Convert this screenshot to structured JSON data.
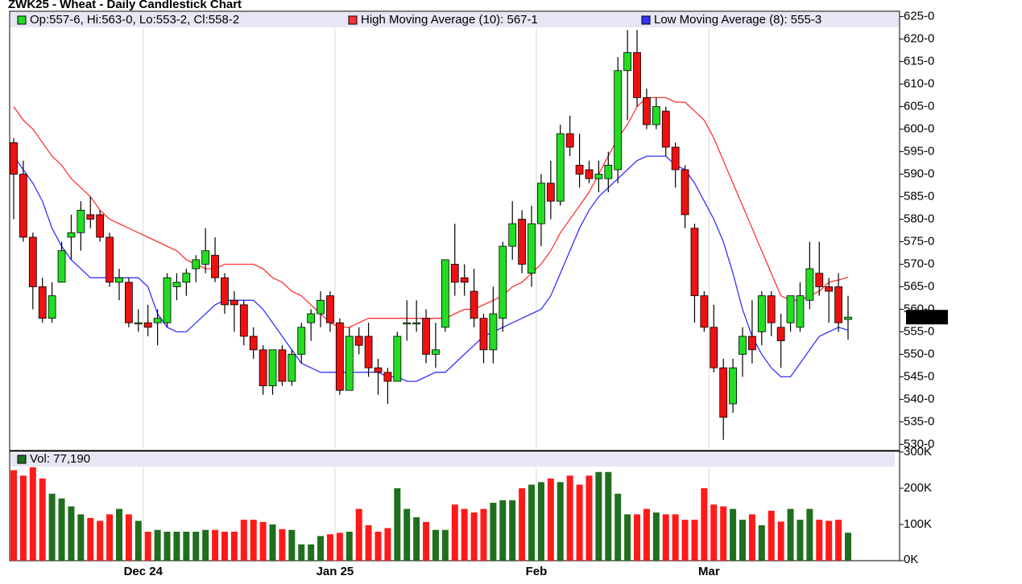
{
  "chart_data": {
    "type": "candlestick",
    "title": "ZWK25 - Wheat - Daily Candlestick Chart",
    "candle_legend": "Op:557-6, Hi:563-0, Lo:553-2, Cl:558-2",
    "volume_label": "Vol: 77,190",
    "last_price_label": "558-2",
    "up_color": "#22dd22",
    "down_color": "#ee1111",
    "volume_up_color": "#1f6f1f",
    "volume_down_color": "#ff1a1a",
    "grid": true,
    "categories": [
      null,
      null,
      null,
      null,
      null,
      null,
      null,
      null,
      null,
      null,
      null,
      null,
      null,
      null,
      "Dec 24",
      null,
      null,
      null,
      null,
      null,
      null,
      null,
      null,
      null,
      null,
      null,
      null,
      null,
      null,
      null,
      null,
      null,
      null,
      null,
      "Jan 25",
      null,
      null,
      null,
      null,
      null,
      null,
      null,
      null,
      null,
      null,
      null,
      null,
      null,
      null,
      null,
      null,
      null,
      null,
      null,
      null,
      "Feb",
      null,
      null,
      null,
      null,
      null,
      null,
      null,
      null,
      null,
      null,
      null,
      null,
      null,
      null,
      null,
      null,
      null,
      "Mar",
      null,
      null,
      null,
      null,
      null,
      null,
      null,
      null,
      null,
      null,
      null,
      null,
      null,
      null
    ],
    "open": [
      597,
      590,
      576,
      565,
      558,
      566,
      576,
      577,
      581,
      581,
      576,
      566,
      566,
      557,
      557,
      557,
      557,
      565,
      566,
      569,
      570,
      572,
      567,
      562,
      561,
      554,
      551,
      543,
      551,
      544,
      550,
      557,
      559,
      563,
      557,
      542,
      554,
      554,
      547,
      546,
      544,
      557,
      557,
      558,
      550,
      556,
      570,
      567,
      564,
      558,
      551,
      558,
      574,
      580,
      568,
      579,
      588,
      584,
      599,
      592,
      591,
      589,
      589,
      591,
      613,
      617,
      607,
      601,
      604,
      596,
      591,
      578,
      563,
      556,
      547,
      539,
      550,
      554,
      555,
      563,
      556,
      557,
      556,
      562,
      568,
      565,
      565,
      557.75
    ],
    "high": [
      598,
      593,
      577,
      567,
      566,
      575,
      581,
      584,
      585,
      582,
      577,
      569,
      567,
      560,
      561,
      560,
      568,
      568,
      569,
      572,
      578,
      576,
      568,
      564,
      562,
      556,
      552,
      551,
      552,
      551,
      557,
      560,
      564,
      564,
      558,
      556,
      556,
      557,
      549,
      547,
      555,
      562,
      562,
      560,
      557,
      571,
      579,
      570,
      569,
      559,
      565,
      575,
      584,
      582,
      583,
      590,
      593,
      601,
      603,
      599,
      593,
      593,
      595,
      616,
      622,
      622,
      609,
      607,
      605,
      597,
      592,
      579,
      564,
      561,
      549,
      549,
      556,
      562,
      564,
      564,
      559,
      563,
      566,
      575,
      575,
      567,
      568,
      563
    ],
    "low": [
      580,
      575,
      560,
      557,
      557,
      566,
      571,
      573,
      578,
      575,
      565,
      562,
      556,
      555,
      554,
      552,
      556,
      562,
      563,
      566,
      568,
      566,
      559,
      555,
      552,
      549,
      541,
      541,
      543,
      543,
      548,
      553,
      556,
      555,
      541,
      542,
      550,
      545,
      541,
      539,
      544,
      553,
      555,
      548,
      547,
      555,
      563,
      563,
      556,
      548,
      548,
      555,
      571,
      568,
      565,
      574,
      580,
      583,
      594,
      587,
      588,
      586,
      586,
      588,
      602,
      605,
      600,
      600,
      594,
      587,
      578,
      557,
      555,
      546,
      531,
      537,
      545,
      548,
      552,
      554,
      547,
      555,
      555,
      560,
      563,
      557,
      555,
      553.25
    ],
    "close": [
      590,
      576,
      565,
      558,
      563,
      573,
      577,
      582,
      580,
      576,
      566,
      567,
      557,
      557,
      556,
      558,
      567,
      566,
      568,
      571,
      573,
      567,
      561,
      561,
      554,
      551,
      543,
      551,
      544,
      550,
      556,
      559,
      562,
      557,
      542,
      554,
      552,
      547,
      546,
      544,
      554,
      557,
      557,
      550,
      551,
      571,
      566,
      566,
      558,
      551,
      559,
      574,
      579,
      570,
      579,
      588,
      584,
      599,
      596,
      590,
      589,
      590,
      592,
      613,
      617,
      607,
      601,
      605,
      596,
      591,
      581,
      563,
      556,
      547,
      536,
      547,
      554,
      551,
      563,
      557,
      553,
      563,
      563,
      569,
      565,
      564,
      557,
      558.25
    ],
    "volume": [
      250000,
      235000,
      258000,
      227000,
      185000,
      172000,
      150000,
      128000,
      118000,
      110000,
      128000,
      143000,
      128000,
      110000,
      80000,
      85000,
      80000,
      80000,
      80000,
      80000,
      85000,
      85000,
      80000,
      80000,
      113000,
      113000,
      107000,
      100000,
      87000,
      85000,
      45000,
      45000,
      68000,
      73000,
      77000,
      80000,
      143000,
      98000,
      80000,
      90000,
      200000,
      143000,
      120000,
      107000,
      85000,
      85000,
      155000,
      143000,
      133000,
      143000,
      160000,
      167000,
      167000,
      200000,
      210000,
      217000,
      227000,
      217000,
      235000,
      210000,
      235000,
      245000,
      245000,
      185000,
      128000,
      128000,
      143000,
      133000,
      128000,
      128000,
      113000,
      113000,
      200000,
      155000,
      150000,
      143000,
      113000,
      128000,
      98000,
      138000,
      108000,
      143000,
      113000,
      143000,
      113000,
      110000,
      113000,
      77190
    ],
    "series": [
      {
        "name": "High Moving Average (10): 567-1",
        "color": "#ff3333",
        "values": [
          605,
          602,
          600,
          597,
          594,
          592,
          589,
          587,
          585,
          582,
          580,
          579,
          578,
          577,
          576,
          575,
          574,
          573,
          571,
          570,
          569,
          569,
          570,
          570,
          570,
          570,
          569,
          567,
          566,
          564,
          563,
          561,
          559,
          557,
          556,
          556,
          557,
          558,
          558,
          558,
          558,
          558,
          558,
          558,
          558,
          558,
          559,
          560,
          560,
          561,
          562,
          563,
          565,
          566,
          568,
          570,
          573,
          577,
          580,
          583,
          586,
          590,
          594,
          598,
          601,
          605,
          607,
          607,
          607,
          606,
          606,
          604,
          602,
          598,
          593,
          588,
          583,
          578,
          573,
          568,
          563,
          562,
          562,
          563,
          564,
          566,
          566.5,
          567.125
        ]
      },
      {
        "name": "Low Moving Average (8): 555-3",
        "color": "#3333ff",
        "values": [
          594,
          591,
          588,
          584,
          578,
          574,
          571,
          569,
          567,
          567,
          567,
          567,
          567,
          567,
          565,
          559,
          556,
          555,
          555,
          557,
          559,
          561,
          562,
          562,
          562,
          562,
          560,
          557,
          554,
          551,
          548,
          547,
          546,
          546,
          546,
          546,
          546,
          546,
          546,
          545,
          545,
          544,
          544,
          545,
          546,
          546,
          548,
          550,
          552,
          554,
          555,
          556,
          557,
          558,
          559,
          560,
          563,
          568,
          573,
          578,
          582,
          585,
          587,
          589,
          591,
          593,
          594,
          594,
          594,
          592,
          591,
          588,
          584,
          580,
          575,
          568,
          560,
          554,
          550,
          547,
          545,
          545,
          548,
          551,
          554,
          555,
          556,
          555.375
        ]
      }
    ],
    "ylim": [
      529,
      626
    ],
    "yticks": [
      {
        "value": 530,
        "label": "530-0"
      },
      {
        "value": 535,
        "label": "535-0"
      },
      {
        "value": 540,
        "label": "540-0"
      },
      {
        "value": 545,
        "label": "545-0"
      },
      {
        "value": 550,
        "label": "550-0"
      },
      {
        "value": 555,
        "label": "555-0"
      },
      {
        "value": 560,
        "label": "560-0"
      },
      {
        "value": 565,
        "label": "565-0"
      },
      {
        "value": 570,
        "label": "570-0"
      },
      {
        "value": 575,
        "label": "575-0"
      },
      {
        "value": 580,
        "label": "580-0"
      },
      {
        "value": 585,
        "label": "585-0"
      },
      {
        "value": 590,
        "label": "590-0"
      },
      {
        "value": 595,
        "label": "595-0"
      },
      {
        "value": 600,
        "label": "600-0"
      },
      {
        "value": 605,
        "label": "605-0"
      },
      {
        "value": 610,
        "label": "610-0"
      },
      {
        "value": 615,
        "label": "615-0"
      },
      {
        "value": 620,
        "label": "620-0"
      },
      {
        "value": 625,
        "label": "625-0"
      }
    ],
    "volume_lim": [
      0,
      300000
    ],
    "volume_ticks": [
      {
        "value": 0,
        "label": "0K"
      },
      {
        "value": 100000,
        "label": "100K"
      },
      {
        "value": 200000,
        "label": "200K"
      },
      {
        "value": 300000,
        "label": "300K"
      }
    ]
  }
}
